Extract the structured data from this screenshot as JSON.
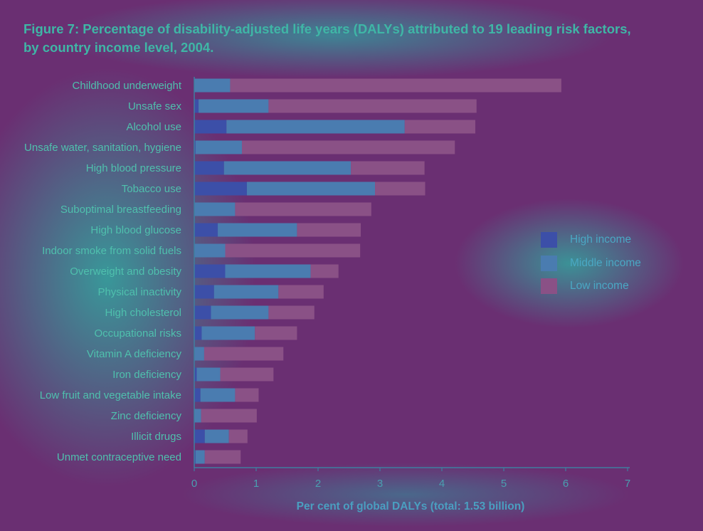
{
  "colors": {
    "high": "#3c4fa8",
    "middle": "#4a7cb0",
    "low": "#8a5186",
    "axis": "#3f7fa0"
  },
  "chart_data": {
    "type": "bar",
    "orientation": "horizontal",
    "stacked": true,
    "title": "Figure 7: Percentage of disability-adjusted life years (DALYs) attributed to 19 leading risk factors, by country income level, 2004.",
    "xlabel": "Per cent of global DALYs (total: 1.53 billion)",
    "ylabel": "",
    "xlim": [
      0,
      7
    ],
    "xticks": [
      "0",
      "1",
      "2",
      "3",
      "4",
      "5",
      "6",
      "7"
    ],
    "legend_position": "right",
    "categories": [
      "Childhood underweight",
      "Unsafe sex",
      "Alcohol use",
      "Unsafe water, sanitation, hygiene",
      "High blood pressure",
      "Tobacco use",
      "Suboptimal breastfeeding",
      "High blood glucose",
      "Indoor smoke from solid fuels",
      "Overweight and obesity",
      "Physical inactivity",
      "High cholesterol",
      "Occupational risks",
      "Vitamin A deficiency",
      "Iron deficiency",
      "Low fruit and vegetable intake",
      "Zinc deficiency",
      "Illicit drugs",
      "Unmet contraceptive need"
    ],
    "series": [
      {
        "name": "High income",
        "values": [
          0.0,
          0.07,
          0.52,
          0.02,
          0.48,
          0.85,
          0.0,
          0.38,
          0.0,
          0.5,
          0.32,
          0.27,
          0.12,
          0.0,
          0.04,
          0.1,
          0.0,
          0.17,
          0.02
        ]
      },
      {
        "name": "Middle income",
        "values": [
          0.58,
          1.13,
          2.88,
          0.75,
          2.05,
          2.07,
          0.66,
          1.28,
          0.5,
          1.38,
          1.04,
          0.93,
          0.86,
          0.16,
          0.38,
          0.56,
          0.11,
          0.39,
          0.15
        ]
      },
      {
        "name": "Low income",
        "values": [
          5.35,
          3.36,
          1.14,
          3.44,
          1.19,
          0.81,
          2.2,
          1.03,
          2.18,
          0.45,
          0.73,
          0.74,
          0.68,
          1.28,
          0.86,
          0.38,
          0.9,
          0.3,
          0.58
        ]
      }
    ]
  }
}
